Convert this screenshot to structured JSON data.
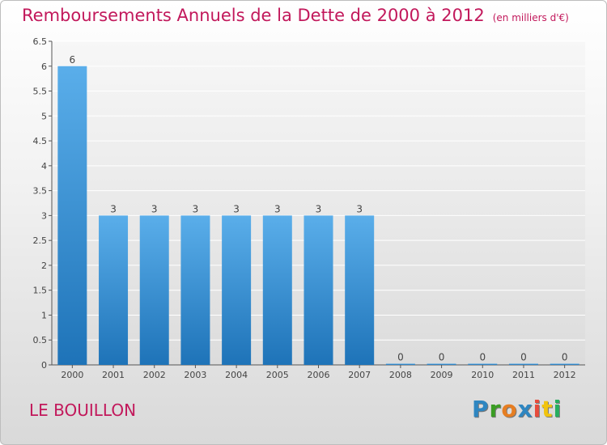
{
  "header": {
    "title": "Remboursements Annuels de la Dette de 2000 à 2012",
    "unit": "(en milliers d'€)"
  },
  "commune": "LE BOUILLON",
  "logo": {
    "letters": [
      "P",
      "r",
      "o",
      "x",
      "i",
      "t",
      "i"
    ],
    "colors": [
      "#2e86c1",
      "#3a9d23",
      "#e67e22",
      "#2e86c1",
      "#e74c3c",
      "#f1c40f",
      "#27ae60"
    ]
  },
  "chart_data": {
    "type": "bar",
    "title": "Remboursements Annuels de la Dette de 2000 à 2012",
    "categories": [
      "2000",
      "2001",
      "2002",
      "2003",
      "2004",
      "2005",
      "2006",
      "2007",
      "2008",
      "2009",
      "2010",
      "2011",
      "2012"
    ],
    "values": [
      6,
      3,
      3,
      3,
      3,
      3,
      3,
      3,
      0,
      0,
      0,
      0,
      0
    ],
    "data_labels": [
      "6",
      "3",
      "3",
      "3",
      "3",
      "3",
      "3",
      "3",
      "0",
      "0",
      "0",
      "0",
      "0"
    ],
    "ylim": [
      0,
      6.5
    ],
    "yticks": [
      0,
      0.5,
      1,
      1.5,
      2,
      2.5,
      3,
      3.5,
      4,
      4.5,
      5,
      5.5,
      6,
      6.5
    ],
    "ytick_labels": [
      "0",
      "0.5",
      "1",
      "1.5",
      "2",
      "2.5",
      "3",
      "3.5",
      "4",
      "4.5",
      "5",
      "5.5",
      "6",
      "6.5"
    ],
    "grid": true,
    "bar_color": "#2f8fd8"
  }
}
